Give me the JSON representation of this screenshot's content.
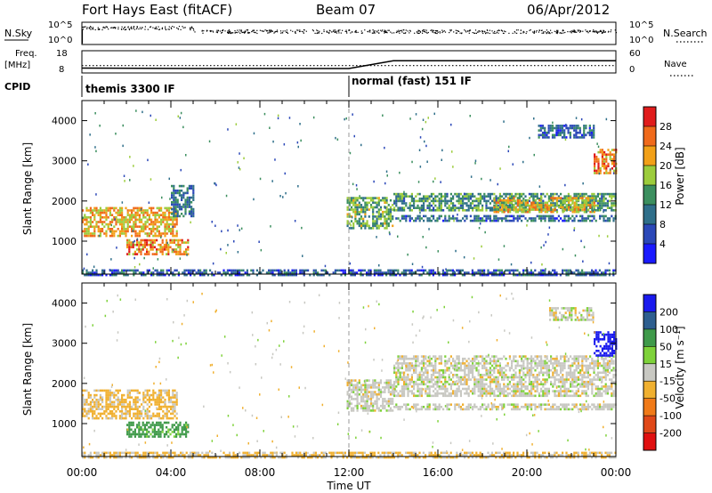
{
  "header": {
    "station": "Fort Hays East (fitACF)",
    "beam": "Beam 07",
    "date": "06/Apr/2012"
  },
  "top_panels": {
    "nsky_label": "N.Sky",
    "nsearch_label": "N.Search",
    "noise_tick_high": "10^5",
    "noise_tick_low": "10^0",
    "freq_label_line1": "Freq.",
    "freq_label_line2": "[MHz]",
    "freq_ticks": [
      "18",
      "8"
    ],
    "nave_label": "Nave",
    "nave_ticks": [
      "60",
      "0"
    ],
    "cpid_label": "CPID",
    "cpid_modes": [
      {
        "name": "themis 3300 IF",
        "start_ut": "00:00"
      },
      {
        "name": "normal (fast) 151 IF",
        "start_ut": "12:00"
      }
    ]
  },
  "colorbars": {
    "power": {
      "label": "Power [dB]",
      "ticks": [
        "28",
        "24",
        "20",
        "16",
        "12",
        "8",
        "4"
      ]
    },
    "velocity": {
      "label": "Velocity [m s⁻¹]",
      "ticks": [
        "200",
        "100",
        "50",
        "15",
        "-15",
        "-50",
        "-100",
        "-200"
      ]
    }
  },
  "chart_data": [
    {
      "type": "line",
      "panel": "noise",
      "series": [
        {
          "name": "N.Sky"
        },
        {
          "name": "N.Search"
        }
      ],
      "x_range_hours": [
        0,
        24
      ],
      "y_ticks": [
        "10^0",
        "10^5"
      ]
    },
    {
      "type": "line",
      "panel": "frequency / nave",
      "series": [
        {
          "name": "Freq. [MHz]",
          "points_hours": [
            [
              0,
              10.2
            ],
            [
              5,
              10.0
            ],
            [
              12,
              10.0
            ],
            [
              14,
              13.5
            ],
            [
              24,
              13.5
            ]
          ]
        },
        {
          "name": "Nave",
          "points_hours": [
            [
              0,
              20
            ],
            [
              24,
              20
            ]
          ]
        }
      ],
      "y_ticks_left": [
        "8",
        "18"
      ],
      "y_ticks_right": [
        "0",
        "60"
      ]
    },
    {
      "type": "heatmap",
      "panel": "power",
      "title": "",
      "xlabel": "",
      "ylabel": "Slant Range [km]",
      "x_ticks": [
        "00:00",
        "04:00",
        "08:00",
        "12:00",
        "16:00",
        "20:00",
        "00:00"
      ],
      "x_range_hours": [
        0,
        24
      ],
      "y_ticks": [
        1000,
        2000,
        3000,
        4000
      ],
      "y_range_km": [
        180,
        4500
      ],
      "colorbar": "Power [dB]",
      "colorbar_range": [
        0,
        32
      ],
      "regions": [
        {
          "t": [
            0.0,
            4.3
          ],
          "r": [
            1150,
            1850
          ],
          "v": 22
        },
        {
          "t": [
            2.0,
            4.8
          ],
          "r": [
            650,
            1050
          ],
          "v": 24
        },
        {
          "t": [
            4.0,
            5.0
          ],
          "r": [
            1600,
            2400
          ],
          "v": 10
        },
        {
          "t": [
            11.9,
            14.0
          ],
          "r": [
            1350,
            2100
          ],
          "v": 15
        },
        {
          "t": [
            14.0,
            24.0
          ],
          "r": [
            1750,
            2200
          ],
          "v": 13
        },
        {
          "t": [
            14.0,
            24.0
          ],
          "r": [
            1500,
            1650
          ],
          "v": 9
        },
        {
          "t": [
            18.5,
            23.0
          ],
          "r": [
            1700,
            2100
          ],
          "v": 20
        },
        {
          "t": [
            20.5,
            23.0
          ],
          "r": [
            3600,
            3900
          ],
          "v": 9
        },
        {
          "t": [
            23.0,
            24.0
          ],
          "r": [
            2700,
            3300
          ],
          "v": 24
        },
        {
          "t": [
            0.0,
            24.0
          ],
          "r": [
            180,
            300
          ],
          "v": 8
        }
      ]
    },
    {
      "type": "heatmap",
      "panel": "velocity",
      "title": "",
      "xlabel": "Time UT",
      "ylabel": "Slant Range [km]",
      "x_ticks": [
        "00:00",
        "04:00",
        "08:00",
        "12:00",
        "16:00",
        "20:00",
        "00:00"
      ],
      "x_range_hours": [
        0,
        24
      ],
      "y_ticks": [
        1000,
        2000,
        3000,
        4000
      ],
      "y_range_km": [
        180,
        4500
      ],
      "colorbar": "Velocity [m s⁻¹]",
      "regions": [
        {
          "t": [
            0.0,
            4.3
          ],
          "r": [
            1150,
            1850
          ],
          "v": -25
        },
        {
          "t": [
            2.0,
            4.8
          ],
          "r": [
            650,
            1050
          ],
          "v": 45
        },
        {
          "t": [
            11.9,
            14.0
          ],
          "r": [
            1350,
            2100
          ],
          "v": 0
        },
        {
          "t": [
            14.0,
            24.0
          ],
          "r": [
            1700,
            2700
          ],
          "v": 0
        },
        {
          "t": [
            14.0,
            24.0
          ],
          "r": [
            1350,
            1500
          ],
          "v": 0
        },
        {
          "t": [
            21.0,
            23.0
          ],
          "r": [
            3600,
            3900
          ],
          "v": 0
        },
        {
          "t": [
            23.0,
            24.0
          ],
          "r": [
            2700,
            3300
          ],
          "v": 200
        },
        {
          "t": [
            0.0,
            24.0
          ],
          "r": [
            180,
            300
          ],
          "v": -20
        }
      ]
    }
  ]
}
